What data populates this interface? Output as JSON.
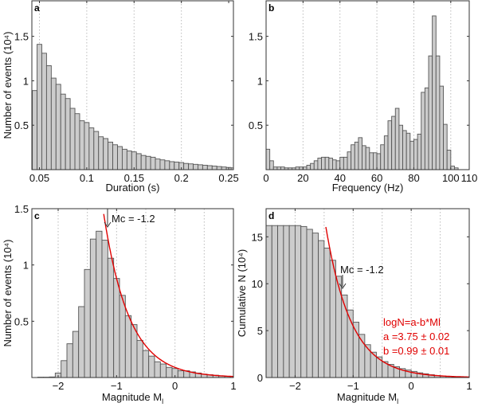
{
  "chart_data": [
    {
      "panel": "a",
      "type": "bar",
      "xlabel": "Duration (s)",
      "ylabel": "Number of events (10⁴)",
      "xlim": [
        0.042,
        0.255
      ],
      "ylim": [
        0,
        1.9
      ],
      "xticks": [
        0.05,
        0.1,
        0.15,
        0.2,
        0.25
      ],
      "xticklabels": [
        "0.05",
        "0.1",
        "0.15",
        "0.2",
        "0.25"
      ],
      "yticks": [
        0.5,
        1,
        1.5
      ],
      "yticklabels": [
        "0.5",
        "1",
        "1.5"
      ],
      "grid": "vertical dotted",
      "bin_start": 0.0425,
      "bin_width": 0.005,
      "values": [
        0.89,
        1.41,
        1.31,
        1.17,
        1.03,
        0.96,
        0.85,
        0.8,
        0.69,
        0.63,
        0.55,
        0.53,
        0.47,
        0.43,
        0.37,
        0.35,
        0.31,
        0.28,
        0.26,
        0.23,
        0.21,
        0.2,
        0.18,
        0.16,
        0.15,
        0.14,
        0.12,
        0.11,
        0.1,
        0.09,
        0.085,
        0.08,
        0.07,
        0.065,
        0.06,
        0.055,
        0.05,
        0.045,
        0.04,
        0.035,
        0.03,
        0.025,
        0.02
      ]
    },
    {
      "panel": "b",
      "type": "bar",
      "xlabel": "Frequency (Hz)",
      "ylabel": "",
      "xlim": [
        0,
        110
      ],
      "ylim": [
        0,
        1.9
      ],
      "xticks": [
        0,
        20,
        40,
        60,
        80,
        100,
        110
      ],
      "xticklabels": [
        "0",
        "20",
        "40",
        "60",
        "80",
        "100",
        "110"
      ],
      "yticks": [
        0.5,
        1,
        1.5
      ],
      "yticklabels": [
        "0.5",
        "1",
        "1.5"
      ],
      "grid": "vertical dotted",
      "bin_start": 0,
      "bin_width": 2,
      "values": [
        0.23,
        0.1,
        0.03,
        0.03,
        0.03,
        0.02,
        0.02,
        0.02,
        0.03,
        0.03,
        0.03,
        0.05,
        0.07,
        0.1,
        0.13,
        0.14,
        0.14,
        0.13,
        0.11,
        0.1,
        0.14,
        0.14,
        0.2,
        0.28,
        0.31,
        0.36,
        0.27,
        0.25,
        0.19,
        0.19,
        0.18,
        0.28,
        0.38,
        0.55,
        0.6,
        0.69,
        0.5,
        0.44,
        0.41,
        0.32,
        0.34,
        0.4,
        0.87,
        0.92,
        1.28,
        1.73,
        1.28,
        0.94,
        0.51,
        0.22,
        0.04,
        0.02
      ]
    },
    {
      "panel": "c",
      "type": "bar",
      "xlabel": "Magnitude M",
      "xlabel_sub": "l",
      "ylabel": "Number of events (10⁴)",
      "xlim": [
        -2.45,
        1
      ],
      "ylim": [
        0,
        1.5
      ],
      "xticks": [
        -2,
        -1,
        0,
        1
      ],
      "xticklabels": [
        "−2",
        "−1",
        "0",
        "1"
      ],
      "yticks": [
        0.5,
        1,
        1.5
      ],
      "yticklabels": [
        "0.5",
        "1",
        "1.5"
      ],
      "grid": "vertical dotted",
      "bin_start": -2.35,
      "bin_width": 0.1,
      "values": [
        0.003,
        0.003,
        0.005,
        0.04,
        0.15,
        0.3,
        0.41,
        0.63,
        0.96,
        1.23,
        1.3,
        1.22,
        1.06,
        0.88,
        0.73,
        0.55,
        0.47,
        0.33,
        0.24,
        0.19,
        0.14,
        0.12,
        0.09,
        0.08,
        0.06,
        0.06,
        0.05,
        0.04,
        0.03,
        0.025,
        0.02,
        0.015,
        0.01,
        0.01
      ],
      "fit": {
        "color": "#e00000",
        "a_scale": 0.09,
        "b": 0.99,
        "x_range": [
          -1.22,
          1
        ]
      },
      "annotation": {
        "text": "Mc = -1.2",
        "x": -1.2
      }
    },
    {
      "panel": "d",
      "type": "bar",
      "xlabel": "Magnitude  M",
      "xlabel_sub": "l",
      "ylabel": "Cumulative N (10⁴)",
      "xlim": [
        -2.5,
        1
      ],
      "ylim": [
        0,
        18
      ],
      "xticks": [
        -2,
        -1,
        0,
        1
      ],
      "xticklabels": [
        "−2",
        "−1",
        "0",
        "1"
      ],
      "yticks": [
        0,
        5,
        10,
        15
      ],
      "yticklabels": [
        "0",
        "5",
        "10",
        "15"
      ],
      "grid": "vertical dotted",
      "bin_start": -2.5,
      "bin_width": 0.1,
      "values": [
        16.2,
        16.2,
        16.2,
        16.2,
        16.2,
        16.2,
        16.1,
        15.8,
        15.4,
        14.6,
        13.8,
        12.5,
        10.8,
        8.8,
        7.2,
        5.9,
        4.6,
        3.5,
        2.7,
        2.2,
        1.7,
        1.4,
        1.15,
        0.95,
        0.8,
        0.65,
        0.5,
        0.4,
        0.3,
        0.22,
        0.16,
        0.12,
        0.08,
        0.05,
        0.03
      ],
      "fit": {
        "color": "#e00000",
        "a": 3.75,
        "b": 0.99,
        "x_range": [
          -1.47,
          1
        ]
      },
      "annotation": {
        "text": "Mc = -1.2",
        "x": -1.2
      },
      "fit_text": [
        "logN=a-b*Ml",
        "a =3.75 ± 0.02",
        "b =0.99 ± 0.01"
      ]
    }
  ],
  "colors": {
    "bar_fill": "#cccccc",
    "bar_edge": "#555555",
    "fit": "#e00000"
  }
}
